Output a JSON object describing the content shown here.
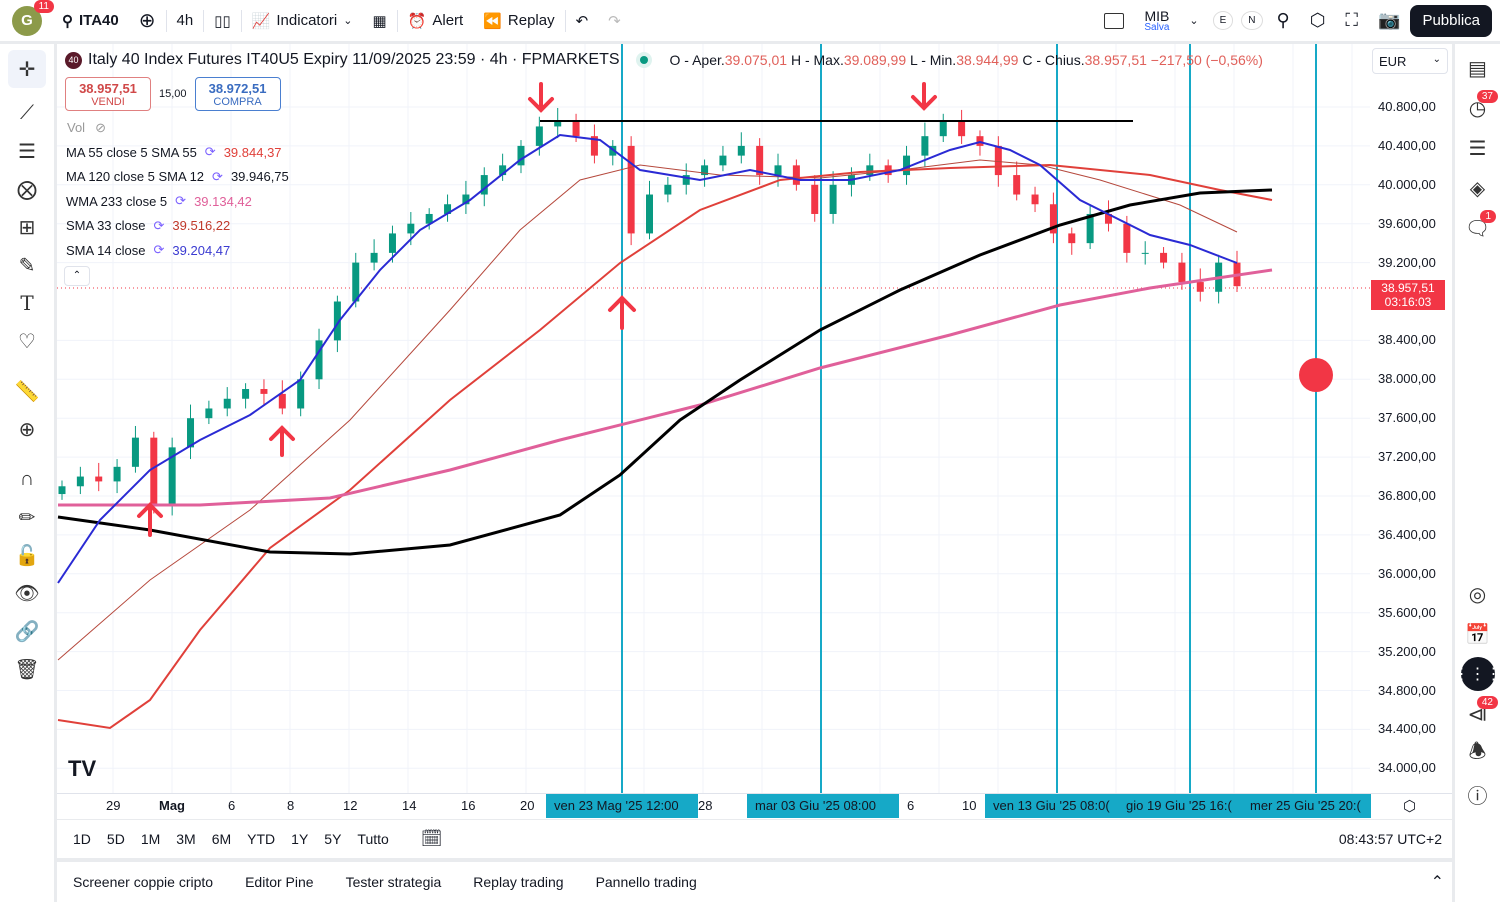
{
  "topbar": {
    "avatar_letter": "G",
    "avatar_badge": "11",
    "symbol": "ITA40",
    "interval": "4h",
    "indicators": "Indicatori",
    "alert": "Alert",
    "replay": "Replay",
    "layout_name": "MIB",
    "layout_sub": "Salva",
    "e": "E",
    "n": "N",
    "publish": "Pubblica"
  },
  "legend": {
    "exchange_badge": "40",
    "title": "Italy 40 Index Futures IT40U5 Expiry 11/09/2025 23:59 · 4h · FPMARKETS",
    "o_label": "O - Aper.",
    "o": "39.075,01",
    "h_label": "H - Max.",
    "h": "39.089,99",
    "l_label": "L - Min.",
    "l": "38.944,99",
    "c_label": "C - Chius.",
    "c": "38.957,51",
    "change": "−217,50 (−0,56%)",
    "sell_price": "38.957,51",
    "sell_label": "VENDI",
    "spread": "15,00",
    "buy_price": "38.972,51",
    "buy_label": "COMPRA",
    "vol": "Vol",
    "indicators": [
      {
        "name": "MA 55 close 5 SMA 55",
        "value": "39.844,37",
        "color": "#e0403a"
      },
      {
        "name": "MA 120 close 5 SMA 12",
        "value": "39.946,75",
        "color": "#131722"
      },
      {
        "name": "WMA 233 close 5",
        "value": "39.134,42",
        "color": "#e0609a"
      },
      {
        "name": "SMA 33 close",
        "value": "39.516,22",
        "color": "#c0392b"
      },
      {
        "name": "SMA 14 close",
        "value": "39.204,47",
        "color": "#3b3bd1"
      }
    ]
  },
  "currency": "EUR",
  "price_scale": [
    "40.800,00",
    "40.400,00",
    "40.000,00",
    "39.600,00",
    "39.200,00",
    "38.400,00",
    "38.000,00",
    "37.600,00",
    "37.200,00",
    "36.800,00",
    "36.400,00",
    "36.000,00",
    "35.600,00",
    "35.200,00",
    "34.800,00",
    "34.400,00",
    "34.000,00"
  ],
  "last_price": {
    "value": "38.957,51",
    "countdown": "03:16:03"
  },
  "time_axis": {
    "ticks": [
      "29",
      "Mag",
      "6",
      "8",
      "12",
      "14",
      "16",
      "20",
      "28",
      "6",
      "10"
    ],
    "selected": [
      "ven 23 Mag '25   12:00",
      "mar 03 Giu '25   08:00",
      "ven 13 Giu '25   08:0(",
      "gio 19 Giu '25   16:(",
      "mer 25 Giu '25   20:("
    ]
  },
  "ranges": [
    "1D",
    "5D",
    "1M",
    "3M",
    "6M",
    "YTD",
    "1Y",
    "5Y",
    "Tutto"
  ],
  "clock": "08:43:57 UTC+2",
  "bottom_tabs": [
    "Screener coppie cripto",
    "Editor Pine",
    "Tester strategia",
    "Replay trading",
    "Pannello trading"
  ],
  "right_badges": {
    "alerts": "37",
    "chat": "1",
    "notifications": "42"
  },
  "colors": {
    "up": "#089981",
    "down": "#f23645",
    "vline": "#16a9c7",
    "accent": "#2962ff"
  },
  "chart_data": {
    "type": "candlestick",
    "price_min": 34000,
    "price_max": 40800,
    "closes": [
      36900,
      37000,
      36950,
      37100,
      37400,
      36700,
      37300,
      37600,
      37700,
      37800,
      37900,
      37850,
      37700,
      38000,
      38400,
      38800,
      39200,
      39300,
      39500,
      39600,
      39700,
      39800,
      39900,
      40100,
      40200,
      40400,
      40600,
      40650,
      40500,
      40300,
      40400,
      39500,
      39900,
      40000,
      40100,
      40200,
      40300,
      40400,
      40100,
      40200,
      40000,
      39700,
      40000,
      40100,
      40200,
      40100,
      40300,
      40500,
      40650,
      40500,
      40400,
      40100,
      39900,
      39800,
      39500,
      39400,
      39700,
      39600,
      39300,
      39300,
      39200,
      39000,
      38900,
      39200,
      38957.51
    ],
    "resistance": 40680
  }
}
